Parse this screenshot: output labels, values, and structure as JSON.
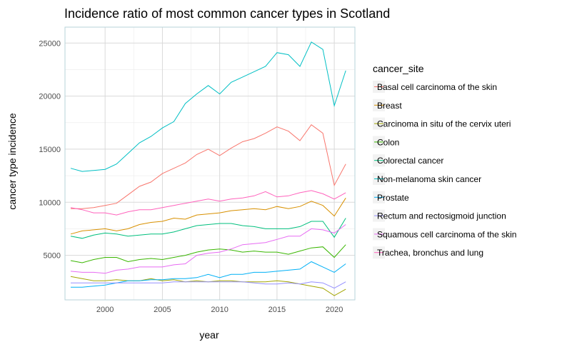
{
  "chart_data": {
    "type": "line",
    "title": "Incidence ratio of most common cancer types in Scotland",
    "xlabel": "year",
    "ylabel": "cancer type incidence",
    "xlim": [
      1996.5,
      2021.8
    ],
    "ylim": [
      800,
      26500
    ],
    "x_ticks": [
      2000,
      2005,
      2010,
      2015,
      2020
    ],
    "y_ticks": [
      5000,
      10000,
      15000,
      20000,
      25000
    ],
    "x_tick_labels": [
      "2000",
      "2005",
      "2010",
      "2015",
      "2020"
    ],
    "y_tick_labels": [
      "5000",
      "10000",
      "15000",
      "20000",
      "25000"
    ],
    "grid": true,
    "legend_title": "cancer_site",
    "legend_position": "right",
    "x": [
      1997,
      1998,
      1999,
      2000,
      2001,
      2002,
      2003,
      2004,
      2005,
      2006,
      2007,
      2008,
      2009,
      2010,
      2011,
      2012,
      2013,
      2014,
      2015,
      2016,
      2017,
      2018,
      2019,
      2020,
      2021
    ],
    "series": [
      {
        "name": "Basal cell carcinoma of the skin",
        "color": "#F8766D",
        "values": [
          9400,
          9400,
          9500,
          9700,
          9900,
          10700,
          11500,
          11900,
          12700,
          13200,
          13700,
          14500,
          15000,
          14400,
          15100,
          15700,
          16000,
          16500,
          17100,
          16700,
          15800,
          17300,
          16500,
          11600,
          13600
        ]
      },
      {
        "name": "Breast",
        "color": "#D89000",
        "values": [
          7000,
          7300,
          7400,
          7500,
          7300,
          7500,
          7900,
          8100,
          8200,
          8500,
          8400,
          8800,
          8900,
          9000,
          9200,
          9300,
          9400,
          9300,
          9600,
          9400,
          9600,
          10100,
          9700,
          8700,
          10400
        ]
      },
      {
        "name": "Carcinoma in situ of the cervix uteri",
        "color": "#A3A500",
        "values": [
          3000,
          2800,
          2600,
          2600,
          2700,
          2600,
          2600,
          2800,
          2600,
          2700,
          2500,
          2600,
          2500,
          2600,
          2600,
          2500,
          2500,
          2500,
          2600,
          2500,
          2300,
          2100,
          1900,
          1200,
          1800
        ]
      },
      {
        "name": "Colon",
        "color": "#39B600",
        "values": [
          4500,
          4300,
          4600,
          4800,
          4800,
          4400,
          4600,
          4700,
          4600,
          4800,
          5000,
          5300,
          5500,
          5600,
          5500,
          5300,
          5400,
          5300,
          5300,
          5100,
          5400,
          5700,
          5800,
          4800,
          6000
        ]
      },
      {
        "name": "Colorectal cancer",
        "color": "#00BF7D",
        "values": [
          6800,
          6600,
          6900,
          7100,
          7000,
          6800,
          6900,
          7000,
          7000,
          7200,
          7500,
          7800,
          7900,
          8000,
          8000,
          7800,
          7700,
          7500,
          7500,
          7500,
          7700,
          8200,
          8200,
          6700,
          8500
        ]
      },
      {
        "name": "Non-melanoma skin cancer",
        "color": "#00BFC4",
        "values": [
          13200,
          12900,
          13000,
          13100,
          13600,
          14600,
          15600,
          16200,
          17000,
          17600,
          19300,
          20200,
          21000,
          20200,
          21300,
          21800,
          22300,
          22800,
          24100,
          23900,
          22800,
          25100,
          24400,
          19100,
          22400
        ]
      },
      {
        "name": "Prostate",
        "color": "#00B0F6",
        "values": [
          2000,
          2000,
          2100,
          2200,
          2400,
          2600,
          2600,
          2700,
          2700,
          2800,
          2800,
          2900,
          3200,
          2900,
          3200,
          3200,
          3400,
          3400,
          3500,
          3600,
          3700,
          4400,
          3900,
          3400,
          4200
        ]
      },
      {
        "name": "Rectum and rectosigmoid junction",
        "color": "#9590FF",
        "values": [
          2400,
          2400,
          2400,
          2400,
          2400,
          2400,
          2400,
          2400,
          2400,
          2500,
          2500,
          2500,
          2500,
          2500,
          2500,
          2500,
          2400,
          2300,
          2300,
          2400,
          2300,
          2500,
          2400,
          1900,
          2500
        ]
      },
      {
        "name": "Squamous cell carcinoma of the skin",
        "color": "#E76BF3",
        "values": [
          3500,
          3400,
          3400,
          3300,
          3600,
          3700,
          3900,
          3900,
          3900,
          4100,
          4200,
          5000,
          5200,
          5300,
          5600,
          6000,
          6100,
          6200,
          6500,
          6800,
          6800,
          7500,
          7400,
          7100,
          7900
        ]
      },
      {
        "name": "Trachea, bronchus and lung",
        "color": "#FF62BC",
        "values": [
          9500,
          9300,
          9000,
          9000,
          8800,
          9100,
          9300,
          9300,
          9500,
          9700,
          9900,
          10100,
          10300,
          10100,
          10300,
          10400,
          10600,
          11000,
          10500,
          10600,
          10900,
          11100,
          10800,
          10300,
          10900
        ]
      }
    ]
  }
}
